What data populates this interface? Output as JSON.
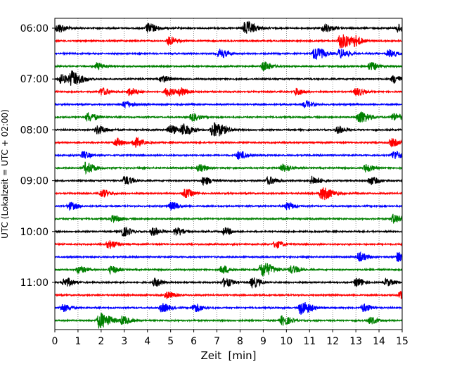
{
  "chart_data": {
    "type": "line",
    "subtype": "helicorder",
    "xlabel": "Zeit  [min]",
    "ylabel": "UTC (Lokalzeit = UTC + 02:00)",
    "xlim": [
      0,
      15
    ],
    "x_ticks": [
      "0",
      "1",
      "2",
      "3",
      "4",
      "5",
      "6",
      "7",
      "8",
      "9",
      "10",
      "11",
      "12",
      "13",
      "14",
      "15"
    ],
    "y_tick_labels": [
      "06:00",
      "07:00",
      "08:00",
      "09:00",
      "10:00",
      "11:00"
    ],
    "trace_colors": [
      "#000000",
      "#ff0000",
      "#0000ff",
      "#008000"
    ],
    "vertical_grid": true,
    "grid_style": "dotted",
    "traces": [
      {
        "start": "06:00",
        "color": "#000000",
        "events": [
          [
            0.1,
            0.55
          ],
          [
            4.0,
            0.6
          ],
          [
            8.2,
            0.85
          ],
          [
            11.6,
            0.55
          ],
          [
            14.8,
            0.5
          ]
        ]
      },
      {
        "start": "06:15",
        "color": "#ff0000",
        "events": [
          [
            4.9,
            0.5
          ],
          [
            12.3,
            0.9
          ],
          [
            12.9,
            0.55
          ]
        ]
      },
      {
        "start": "06:30",
        "color": "#0000ff",
        "events": [
          [
            7.1,
            0.55
          ],
          [
            11.2,
            0.8
          ],
          [
            12.3,
            0.6
          ],
          [
            14.4,
            0.5
          ]
        ]
      },
      {
        "start": "06:45",
        "color": "#008000",
        "events": [
          [
            1.8,
            0.45
          ],
          [
            9.0,
            0.55
          ],
          [
            13.6,
            0.5
          ]
        ]
      },
      {
        "start": "07:00",
        "color": "#000000",
        "events": [
          [
            0.2,
            0.6
          ],
          [
            0.7,
            0.9
          ],
          [
            4.6,
            0.45
          ],
          [
            14.6,
            0.5
          ]
        ]
      },
      {
        "start": "07:15",
        "color": "#ff0000",
        "events": [
          [
            2.0,
            0.5
          ],
          [
            3.2,
            0.5
          ],
          [
            4.8,
            0.55
          ],
          [
            5.4,
            0.5
          ],
          [
            10.4,
            0.45
          ],
          [
            13.0,
            0.5
          ]
        ]
      },
      {
        "start": "07:30",
        "color": "#0000ff",
        "events": [
          [
            3.0,
            0.45
          ],
          [
            10.8,
            0.45
          ]
        ]
      },
      {
        "start": "07:45",
        "color": "#008000",
        "events": [
          [
            1.4,
            0.6
          ],
          [
            5.9,
            0.5
          ],
          [
            13.1,
            0.8
          ],
          [
            14.6,
            0.5
          ]
        ]
      },
      {
        "start": "08:00",
        "color": "#000000",
        "events": [
          [
            1.8,
            0.55
          ],
          [
            4.9,
            0.6
          ],
          [
            5.5,
            0.75
          ],
          [
            6.8,
            1.0
          ],
          [
            12.2,
            0.45
          ]
        ]
      },
      {
        "start": "08:15",
        "color": "#ff0000",
        "events": [
          [
            2.6,
            0.5
          ],
          [
            3.4,
            0.6
          ],
          [
            14.5,
            0.5
          ]
        ]
      },
      {
        "start": "08:30",
        "color": "#0000ff",
        "events": [
          [
            1.2,
            0.45
          ],
          [
            7.9,
            0.55
          ],
          [
            14.6,
            0.55
          ]
        ]
      },
      {
        "start": "08:45",
        "color": "#008000",
        "events": [
          [
            1.3,
            0.7
          ],
          [
            6.2,
            0.45
          ],
          [
            9.8,
            0.5
          ],
          [
            13.4,
            0.5
          ]
        ]
      },
      {
        "start": "09:00",
        "color": "#000000",
        "events": [
          [
            3.0,
            0.55
          ],
          [
            6.4,
            0.5
          ],
          [
            9.2,
            0.5
          ],
          [
            11.1,
            0.55
          ],
          [
            13.6,
            0.5
          ]
        ]
      },
      {
        "start": "09:15",
        "color": "#ff0000",
        "events": [
          [
            2.0,
            0.5
          ],
          [
            5.6,
            0.55
          ],
          [
            11.5,
            0.85
          ]
        ]
      },
      {
        "start": "09:30",
        "color": "#0000ff",
        "events": [
          [
            0.6,
            0.5
          ],
          [
            5.0,
            0.5
          ],
          [
            10.0,
            0.45
          ]
        ]
      },
      {
        "start": "09:45",
        "color": "#008000",
        "events": [
          [
            2.5,
            0.45
          ],
          [
            14.6,
            0.6
          ]
        ]
      },
      {
        "start": "10:00",
        "color": "#000000",
        "events": [
          [
            2.9,
            0.6
          ],
          [
            4.2,
            0.5
          ],
          [
            5.2,
            0.55
          ],
          [
            7.3,
            0.45
          ]
        ]
      },
      {
        "start": "10:15",
        "color": "#ff0000",
        "events": [
          [
            2.3,
            0.55
          ],
          [
            9.5,
            0.45
          ]
        ]
      },
      {
        "start": "10:30",
        "color": "#0000ff",
        "events": [
          [
            13.1,
            0.55
          ],
          [
            14.8,
            0.6
          ]
        ]
      },
      {
        "start": "10:45",
        "color": "#008000",
        "events": [
          [
            1.0,
            0.45
          ],
          [
            2.4,
            0.45
          ],
          [
            7.2,
            0.5
          ],
          [
            8.9,
            0.95
          ],
          [
            10.2,
            0.5
          ]
        ]
      },
      {
        "start": "11:00",
        "color": "#000000",
        "events": [
          [
            0.4,
            0.6
          ],
          [
            4.3,
            0.5
          ],
          [
            7.3,
            0.55
          ],
          [
            8.5,
            0.6
          ],
          [
            13.0,
            0.55
          ],
          [
            14.3,
            0.45
          ]
        ]
      },
      {
        "start": "11:15",
        "color": "#ff0000",
        "events": [
          [
            4.8,
            0.45
          ],
          [
            14.9,
            0.5
          ]
        ]
      },
      {
        "start": "11:30",
        "color": "#0000ff",
        "events": [
          [
            0.3,
            0.5
          ],
          [
            4.6,
            0.55
          ],
          [
            6.0,
            0.55
          ],
          [
            10.6,
            0.85
          ],
          [
            13.3,
            0.5
          ]
        ]
      },
      {
        "start": "11:45",
        "color": "#008000",
        "events": [
          [
            1.9,
            1.0
          ],
          [
            2.9,
            0.5
          ],
          [
            9.8,
            0.6
          ],
          [
            13.6,
            0.45
          ]
        ]
      }
    ]
  }
}
